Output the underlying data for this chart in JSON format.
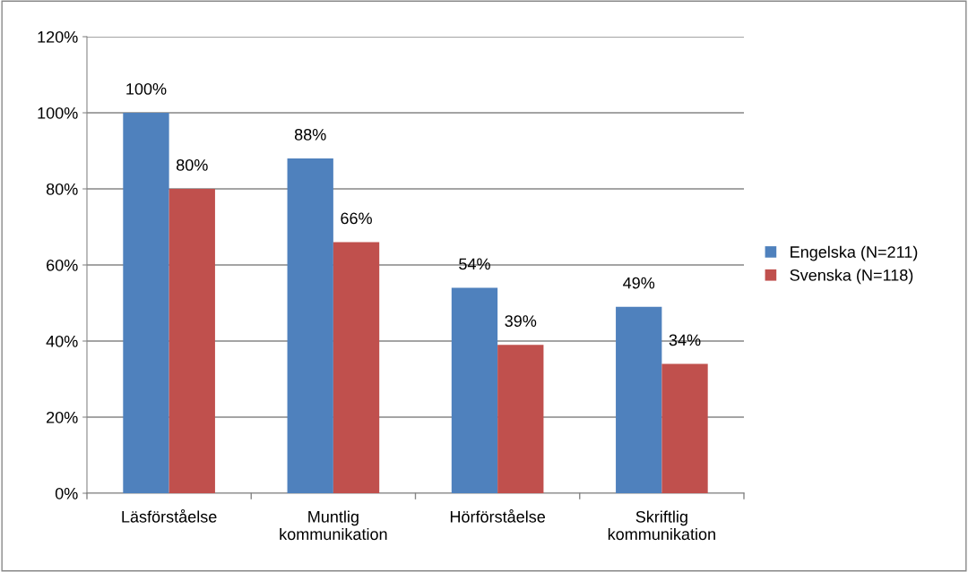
{
  "chart_data": {
    "type": "bar",
    "categories": [
      "Läsförståelse",
      "Muntlig\nkommunikation",
      "Hörförståelse",
      "Skriftlig\nkommunikation"
    ],
    "series": [
      {
        "name": "Engelska (N=211)",
        "color": "#4f81bd",
        "values": [
          100,
          88,
          54,
          49
        ],
        "value_labels": [
          "100%",
          "88%",
          "54%",
          "49%"
        ]
      },
      {
        "name": "Svenska (N=118)",
        "color": "#c0504d",
        "values": [
          80,
          66,
          39,
          34
        ],
        "value_labels": [
          "80%",
          "66%",
          "39%",
          "34%"
        ]
      }
    ],
    "ylim": [
      0,
      120
    ],
    "yticks": [
      {
        "value": 0,
        "label": "0%"
      },
      {
        "value": 20,
        "label": "20%"
      },
      {
        "value": 40,
        "label": "40%"
      },
      {
        "value": 60,
        "label": "60%"
      },
      {
        "value": 80,
        "label": "80%"
      },
      {
        "value": 100,
        "label": "100%"
      },
      {
        "value": 120,
        "label": "120%"
      }
    ],
    "grid": "y",
    "legend": "right"
  }
}
